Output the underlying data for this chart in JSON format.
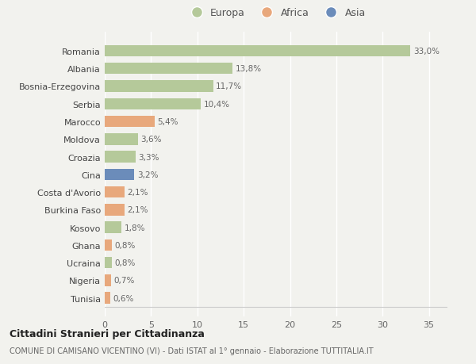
{
  "countries": [
    "Romania",
    "Albania",
    "Bosnia-Erzegovina",
    "Serbia",
    "Marocco",
    "Moldova",
    "Croazia",
    "Cina",
    "Costa d'Avorio",
    "Burkina Faso",
    "Kosovo",
    "Ghana",
    "Ucraina",
    "Nigeria",
    "Tunisia"
  ],
  "values": [
    33.0,
    13.8,
    11.7,
    10.4,
    5.4,
    3.6,
    3.3,
    3.2,
    2.1,
    2.1,
    1.8,
    0.8,
    0.8,
    0.7,
    0.6
  ],
  "labels": [
    "33,0%",
    "13,8%",
    "11,7%",
    "10,4%",
    "5,4%",
    "3,6%",
    "3,3%",
    "3,2%",
    "2,1%",
    "2,1%",
    "1,8%",
    "0,8%",
    "0,8%",
    "0,7%",
    "0,6%"
  ],
  "categories": [
    "Europa",
    "Europa",
    "Europa",
    "Europa",
    "Africa",
    "Europa",
    "Europa",
    "Asia",
    "Africa",
    "Africa",
    "Europa",
    "Africa",
    "Europa",
    "Africa",
    "Africa"
  ],
  "color_europa": "#b5c99a",
  "color_africa": "#e8a87c",
  "color_asia": "#6b8cba",
  "background_color": "#f2f2ee",
  "title1": "Cittadini Stranieri per Cittadinanza",
  "title2": "COMUNE DI CAMISANO VICENTINO (VI) - Dati ISTAT al 1° gennaio - Elaborazione TUTTITALIA.IT",
  "xlim": [
    0,
    37
  ],
  "xticks": [
    0,
    5,
    10,
    15,
    20,
    25,
    30,
    35
  ]
}
